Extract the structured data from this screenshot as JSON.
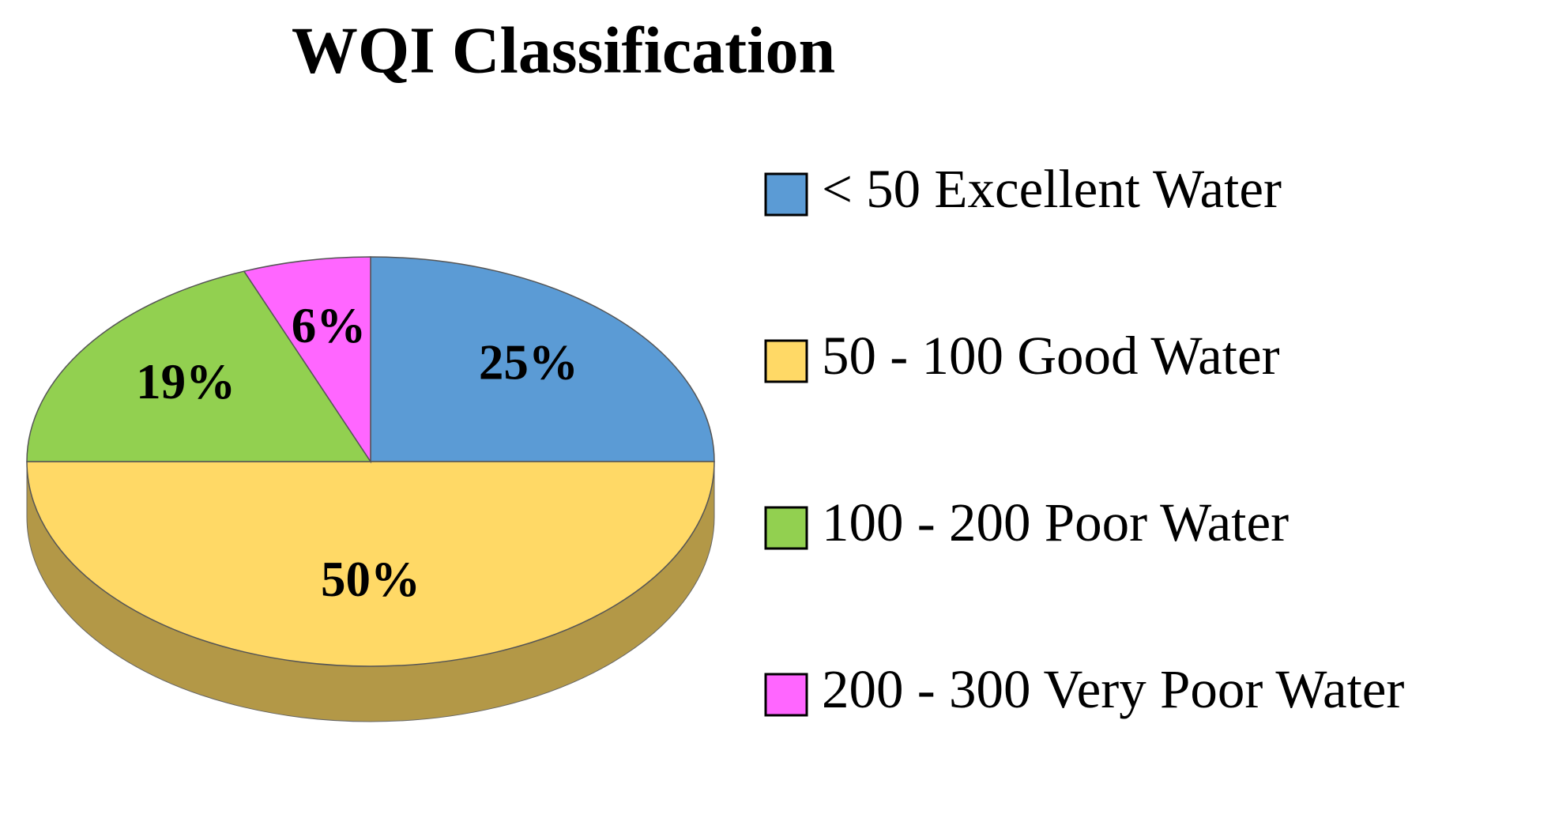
{
  "chart_data": {
    "type": "pie",
    "title": "WQI Classification",
    "categories": [
      "< 50 Excellent Water",
      "50 - 100 Good Water",
      "100 - 200 Poor Water",
      "200 - 300 Very Poor Water"
    ],
    "values": [
      25,
      50,
      19,
      6
    ],
    "value_labels": [
      "25%",
      "50%",
      "19%",
      "6%"
    ],
    "colors": [
      "#5b9bd5",
      "#ffd966",
      "#92d050",
      "#ff66ff"
    ],
    "legend": "right"
  }
}
